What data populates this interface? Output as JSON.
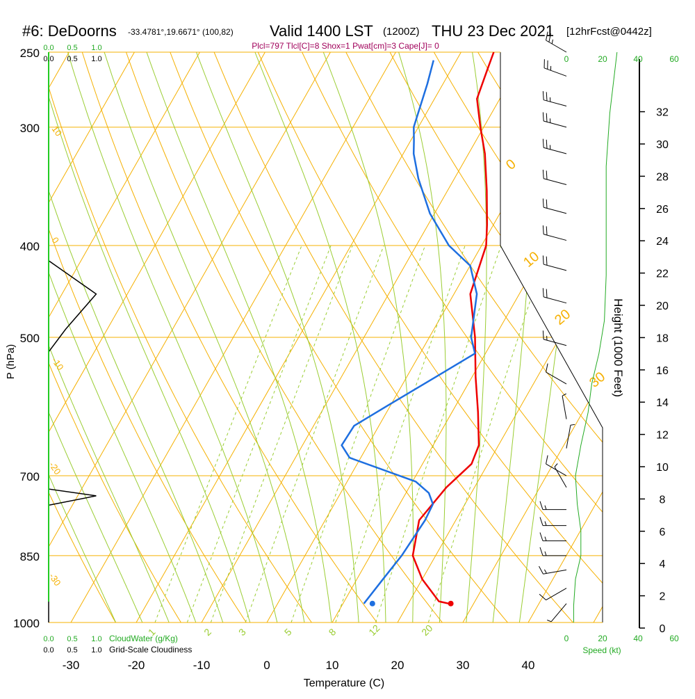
{
  "header": {
    "station": "#6: DeDoorns",
    "coords": "-33.4781°,19.6671° (100,82)",
    "valid": "Valid 1400 LST",
    "utc": "(1200Z)",
    "date": "THU 23 Dec 2021",
    "forecast": "[12hrFcst@0442z]",
    "indices": "Plcl=797 Tlcl[C]=8 Shox=1 Pwat[cm]=3 Cape[J]= 0"
  },
  "colors": {
    "isotherm": "#f5b000",
    "mixing_ratio": "#9acd32",
    "temperature": "#ee0000",
    "dewpoint": "#1e6fe0",
    "green_text": "#22aa22",
    "indices_text": "#a0005a"
  },
  "labels": {
    "cloud_scale_top_green": [
      "0.0",
      "0.5",
      "1.0"
    ],
    "cloud_scale_top_black": [
      "0.0",
      "0.5",
      "1.0"
    ],
    "cloud_scale_bottom_green": [
      "0.0",
      "0.5",
      "1.0"
    ],
    "cloud_scale_bottom_black": [
      "0.0",
      "0.5",
      "1.0"
    ],
    "cloudwater_label": "CloudWater (g/Kg)",
    "cloudiness_label": "Grid-Scale Cloudiness",
    "speed_ticks": [
      "0",
      "20",
      "40",
      "60"
    ],
    "speed_label": "Speed (kt)",
    "isotherm_labels": [
      "0",
      "10",
      "20",
      "30"
    ],
    "theta_labels": [
      "10",
      "0",
      "-10",
      "-20",
      "-30"
    ]
  },
  "chart_data": {
    "type": "line",
    "xlabel": "Temperature (C)",
    "ylabel": "P (hPa)",
    "y2label": "Height (1000 Feet)",
    "xlim": [
      -35,
      45
    ],
    "ylim": [
      1000,
      250
    ],
    "x_ticks": [
      -30,
      -20,
      -10,
      0,
      10,
      20,
      30,
      40
    ],
    "pressure_ticks": [
      250,
      300,
      400,
      500,
      700,
      850,
      1000
    ],
    "height_ticks": [
      0,
      2,
      4,
      6,
      8,
      10,
      12,
      14,
      16,
      18,
      20,
      22,
      24,
      26,
      28,
      30,
      32
    ],
    "mixing_ratio_labels": [
      "1",
      "2",
      "3",
      "5",
      "8",
      "12",
      "20"
    ],
    "series": [
      {
        "name": "Temperature",
        "points": [
          [
            26.2,
            955
          ],
          [
            24.5,
            950
          ],
          [
            20.0,
            900
          ],
          [
            16.5,
            850
          ],
          [
            14.4,
            780
          ],
          [
            15.7,
            720
          ],
          [
            17.5,
            680
          ],
          [
            17.0,
            650
          ],
          [
            14.0,
            600
          ],
          [
            10.5,
            550
          ],
          [
            7.0,
            500
          ],
          [
            2.5,
            450
          ],
          [
            0.7,
            400
          ],
          [
            -1.0,
            380
          ],
          [
            -4.0,
            350
          ],
          [
            -7.5,
            320
          ],
          [
            -10.5,
            300
          ],
          [
            -13.5,
            280
          ],
          [
            -14.5,
            260
          ],
          [
            -15.0,
            250
          ]
        ]
      },
      {
        "name": "Dewpoint",
        "points": [
          [
            13.2,
            955
          ],
          [
            14.0,
            900
          ],
          [
            14.8,
            850
          ],
          [
            15.3,
            780
          ],
          [
            15.1,
            750
          ],
          [
            13.5,
            730
          ],
          [
            10.5,
            710
          ],
          [
            -1.7,
            670
          ],
          [
            -4.0,
            650
          ],
          [
            -3.8,
            620
          ],
          [
            -0.4,
            590
          ],
          [
            4.5,
            550
          ],
          [
            8.4,
            520
          ],
          [
            6.4,
            500
          ],
          [
            3.5,
            450
          ],
          [
            0.0,
            420
          ],
          [
            -5.0,
            400
          ],
          [
            -10.7,
            370
          ],
          [
            -15.5,
            340
          ],
          [
            -18.4,
            320
          ],
          [
            -19.5,
            310
          ],
          [
            -20.7,
            300
          ],
          [
            -22.4,
            270
          ],
          [
            -23.5,
            255
          ]
        ]
      }
    ],
    "surface_points": [
      {
        "name": "Surface temperature",
        "x": 26.5,
        "p": 955
      },
      {
        "name": "Surface dewpoint",
        "x": 14.5,
        "p": 955
      }
    ],
    "cloud_water_profile": [
      [
        0.0,
        250
      ],
      [
        0.0,
        415
      ],
      [
        0.36,
        450
      ],
      [
        0.13,
        490
      ],
      [
        0.0,
        518
      ],
      [
        0.0,
        723
      ],
      [
        0.36,
        735
      ],
      [
        0.0,
        752
      ],
      [
        0.0,
        1000
      ]
    ],
    "wind_speed_profile": [
      [
        28,
        250
      ],
      [
        24,
        290
      ],
      [
        22,
        330
      ],
      [
        22,
        380
      ],
      [
        22,
        430
      ],
      [
        21,
        480
      ],
      [
        18,
        520
      ],
      [
        14,
        560
      ],
      [
        12,
        600
      ],
      [
        8,
        650
      ],
      [
        5,
        700
      ],
      [
        6,
        750
      ],
      [
        8,
        800
      ],
      [
        8,
        850
      ],
      [
        5,
        900
      ],
      [
        4,
        960
      ],
      [
        4,
        1000
      ]
    ],
    "wind_barbs": [
      {
        "p": 250,
        "dir": 300,
        "kt": 25
      },
      {
        "p": 265,
        "dir": 290,
        "kt": 25
      },
      {
        "p": 285,
        "dir": 285,
        "kt": 25
      },
      {
        "p": 300,
        "dir": 285,
        "kt": 25
      },
      {
        "p": 320,
        "dir": 285,
        "kt": 25
      },
      {
        "p": 345,
        "dir": 285,
        "kt": 20
      },
      {
        "p": 370,
        "dir": 285,
        "kt": 20
      },
      {
        "p": 395,
        "dir": 285,
        "kt": 20
      },
      {
        "p": 425,
        "dir": 285,
        "kt": 20
      },
      {
        "p": 460,
        "dir": 285,
        "kt": 20
      },
      {
        "p": 510,
        "dir": 285,
        "kt": 15
      },
      {
        "p": 560,
        "dir": 300,
        "kt": 10
      },
      {
        "p": 610,
        "dir": 350,
        "kt": 5
      },
      {
        "p": 655,
        "dir": 10,
        "kt": 5
      },
      {
        "p": 700,
        "dir": 300,
        "kt": 10
      },
      {
        "p": 720,
        "dir": 330,
        "kt": 5
      },
      {
        "p": 760,
        "dir": 270,
        "kt": 15
      },
      {
        "p": 790,
        "dir": 270,
        "kt": 15
      },
      {
        "p": 820,
        "dir": 270,
        "kt": 15
      },
      {
        "p": 850,
        "dir": 270,
        "kt": 15
      },
      {
        "p": 880,
        "dir": 260,
        "kt": 15
      },
      {
        "p": 920,
        "dir": 240,
        "kt": 10
      },
      {
        "p": 955,
        "dir": 220,
        "kt": 5
      }
    ]
  }
}
